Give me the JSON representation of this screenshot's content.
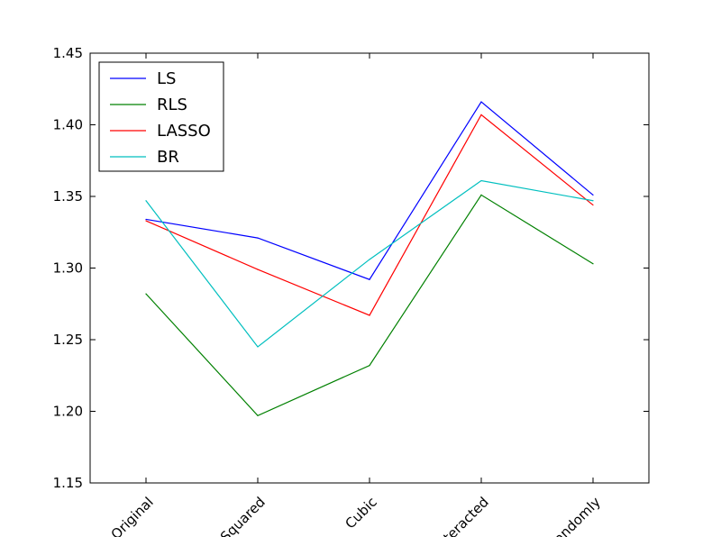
{
  "chart_data": {
    "type": "line",
    "categories": [
      "Original",
      "Squared",
      "Cubic",
      "Interacted",
      "Randomly"
    ],
    "ylim": [
      1.15,
      1.45
    ],
    "yticks": [
      1.15,
      1.2,
      1.25,
      1.3,
      1.35,
      1.4,
      1.45
    ],
    "ytick_labels": [
      "1.15",
      "1.20",
      "1.25",
      "1.30",
      "1.35",
      "1.40",
      "1.45"
    ],
    "grid": false,
    "legend_position": "top-left",
    "series": [
      {
        "name": "LS",
        "color": "#0000ff",
        "values": [
          1.334,
          1.321,
          1.292,
          1.416,
          1.351
        ]
      },
      {
        "name": "RLS",
        "color": "#008000",
        "values": [
          1.282,
          1.197,
          1.232,
          1.351,
          1.303
        ]
      },
      {
        "name": "LASSO",
        "color": "#ff0000",
        "values": [
          1.333,
          1.299,
          1.267,
          1.407,
          1.344
        ]
      },
      {
        "name": "BR",
        "color": "#00bfbf",
        "values": [
          1.347,
          1.245,
          1.306,
          1.361,
          1.347
        ]
      }
    ]
  }
}
